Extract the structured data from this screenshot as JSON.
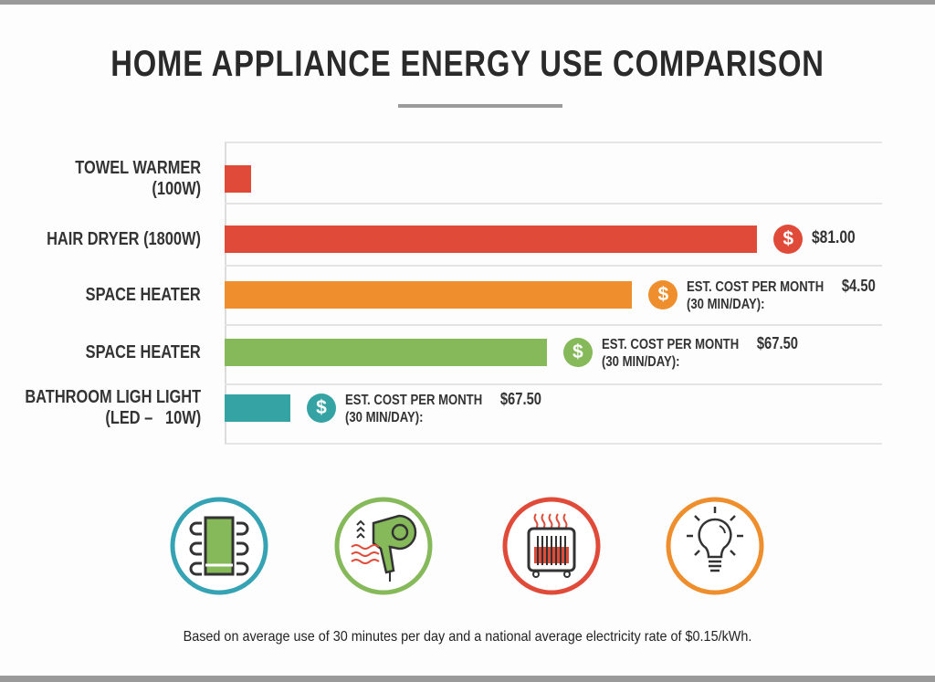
{
  "chart_data": {
    "type": "bar",
    "orientation": "horizontal",
    "title": "HOME APPLIANCE ENERGY USE COMPARISON",
    "categories": [
      "TOWEL WARMER\n(100W)",
      "HAIR DRYER (1800W)",
      "SPACE HEATER",
      "SPACE HEATER",
      "BATHROOM LIGH LIGHT\n(LED –   10W)"
    ],
    "values": [
      4,
      81,
      62,
      49,
      10
    ],
    "xlim": [
      0,
      100
    ],
    "colors": [
      "#e04b39",
      "#e04b39",
      "#ee8e2d",
      "#86b95a",
      "#35a3a3"
    ],
    "annotations": [
      null,
      {
        "label": "",
        "amount": "$81.00"
      },
      {
        "label": "EST. COST PER MONTH",
        "label2": "(30 MIN/DAY):",
        "amount": "$4.50"
      },
      {
        "label": "EST. COST PER MONTH",
        "label2": "(30 MIN/DAY):",
        "amount": "$67.50"
      },
      {
        "label": "EST. COST PER MONTH",
        "label2": "(30 MIN/DAY):",
        "amount": "$67.50"
      }
    ],
    "grid": true,
    "xlabel": "",
    "ylabel": ""
  },
  "coin_symbol": "$",
  "icons": [
    {
      "name": "towel-warmer-icon",
      "color": "#35a3b3"
    },
    {
      "name": "hair-dryer-icon",
      "color": "#86b95a"
    },
    {
      "name": "space-heater-icon",
      "color": "#e04b39"
    },
    {
      "name": "light-bulb-icon",
      "color": "#ee8e2d"
    }
  ],
  "footer": "Based on average use of 30 minutes per day and a national average electricity rate of $0.15/kWh."
}
